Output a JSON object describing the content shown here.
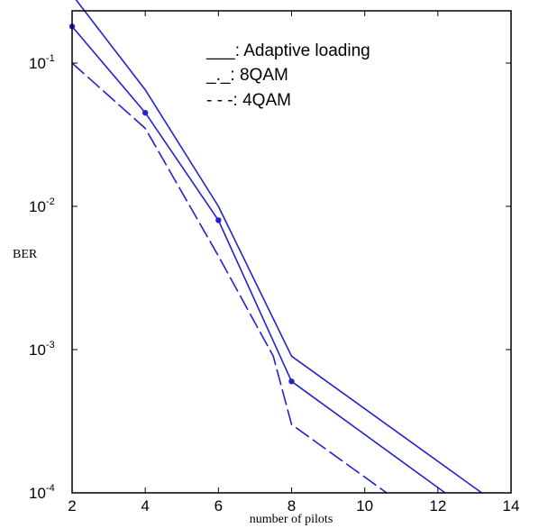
{
  "chart_data": {
    "type": "line",
    "title": "",
    "xlabel": "number of pilots",
    "ylabel": "BER",
    "y_scale": "log",
    "xlim": [
      2,
      14
    ],
    "ylim": [
      0.0001,
      0.5
    ],
    "xticks": [
      2,
      4,
      6,
      8,
      10,
      12,
      14
    ],
    "xtick_labels": [
      "2",
      "4",
      "6",
      "8",
      "10",
      "12",
      "14"
    ],
    "yticks": [
      0.1,
      0.01,
      0.001,
      0.0001
    ],
    "ytick_labels": [
      {
        "base": "10",
        "exp": "-1"
      },
      {
        "base": "10",
        "exp": "-2"
      },
      {
        "base": "10",
        "exp": "-3"
      },
      {
        "base": "10",
        "exp": "-4"
      }
    ],
    "grid": false,
    "legend_position": "top-right",
    "color": "#2222cc",
    "series": [
      {
        "name": "Adaptive loading",
        "legend_text": "___: Adaptive loading",
        "style": "solid",
        "x": [
          2,
          4,
          6,
          8,
          13.2
        ],
        "y": [
          0.3,
          0.065,
          0.01,
          0.0009,
          0.0001
        ]
      },
      {
        "name": "8QAM",
        "legend_text": "_._: 8QAM",
        "style": "dashdot",
        "x": [
          2,
          4,
          6,
          8,
          12.2
        ],
        "y": [
          0.18,
          0.045,
          0.008,
          0.0006,
          0.0001
        ]
      },
      {
        "name": "4QAM",
        "legend_text": "- - -: 4QAM",
        "style": "dashed",
        "x": [
          2,
          4,
          6,
          7.5,
          8,
          10.6
        ],
        "y": [
          0.1,
          0.035,
          0.0045,
          0.0009,
          0.0003,
          0.0001
        ]
      }
    ],
    "markers": [
      {
        "x": 2,
        "y": 0.18
      },
      {
        "x": 4,
        "y": 0.045
      },
      {
        "x": 6,
        "y": 0.008
      },
      {
        "x": 8,
        "y": 0.0006
      }
    ]
  }
}
